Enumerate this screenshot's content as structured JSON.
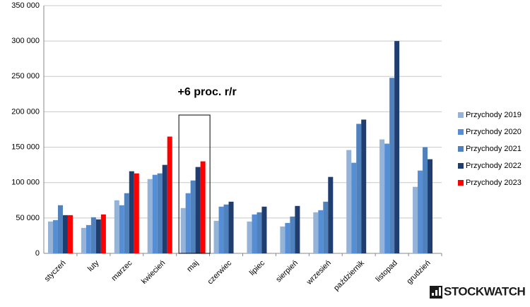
{
  "chart_data": {
    "type": "bar",
    "annotation": "+6 proc. r/r",
    "logo": "STOCKWATCH",
    "categories": [
      "styczeń",
      "luty",
      "marzec",
      "kwiecień",
      "maj",
      "czerwiec",
      "lipiec",
      "sierpień",
      "wrzesień",
      "październik",
      "listopad",
      "grudzień"
    ],
    "series": [
      {
        "name": "Przychody 2019",
        "color": "#95b3d7",
        "values": [
          45000,
          36000,
          75000,
          105000,
          64000,
          46000,
          45000,
          38000,
          58000,
          146000,
          161000,
          94000
        ]
      },
      {
        "name": "Przychody 2020",
        "color": "#558ed5",
        "values": [
          47000,
          40000,
          68000,
          111000,
          85000,
          66000,
          55000,
          43000,
          61000,
          128000,
          155000,
          117000
        ]
      },
      {
        "name": "Przychody 2021",
        "color": "#4f81bd",
        "values": [
          68000,
          51000,
          85000,
          113000,
          103000,
          69000,
          58000,
          52000,
          73000,
          183000,
          248000,
          150000
        ]
      },
      {
        "name": "Przychody 2022",
        "color": "#1f3d6e",
        "values": [
          54000,
          48000,
          116000,
          125000,
          122000,
          73000,
          66000,
          67000,
          108000,
          189000,
          300000,
          133000
        ]
      },
      {
        "name": "Przychody 2023",
        "color": "#ff0000",
        "values": [
          54000,
          55000,
          113000,
          165000,
          130000,
          null,
          null,
          null,
          null,
          null,
          null,
          null
        ]
      }
    ],
    "ylim": [
      0,
      350000
    ],
    "yticks": [
      0,
      {
        "value": 50000,
        "label": "50 000"
      },
      {
        "value": 100000,
        "label": "100 000"
      },
      {
        "value": 150000,
        "label": "150 000"
      },
      {
        "value": 200000,
        "label": "200 000"
      },
      {
        "value": 250000,
        "label": "250 000"
      },
      {
        "value": 300000,
        "label": "300 000"
      },
      {
        "value": 350000,
        "label": "350 000"
      }
    ],
    "grid": true,
    "legend": "right"
  }
}
